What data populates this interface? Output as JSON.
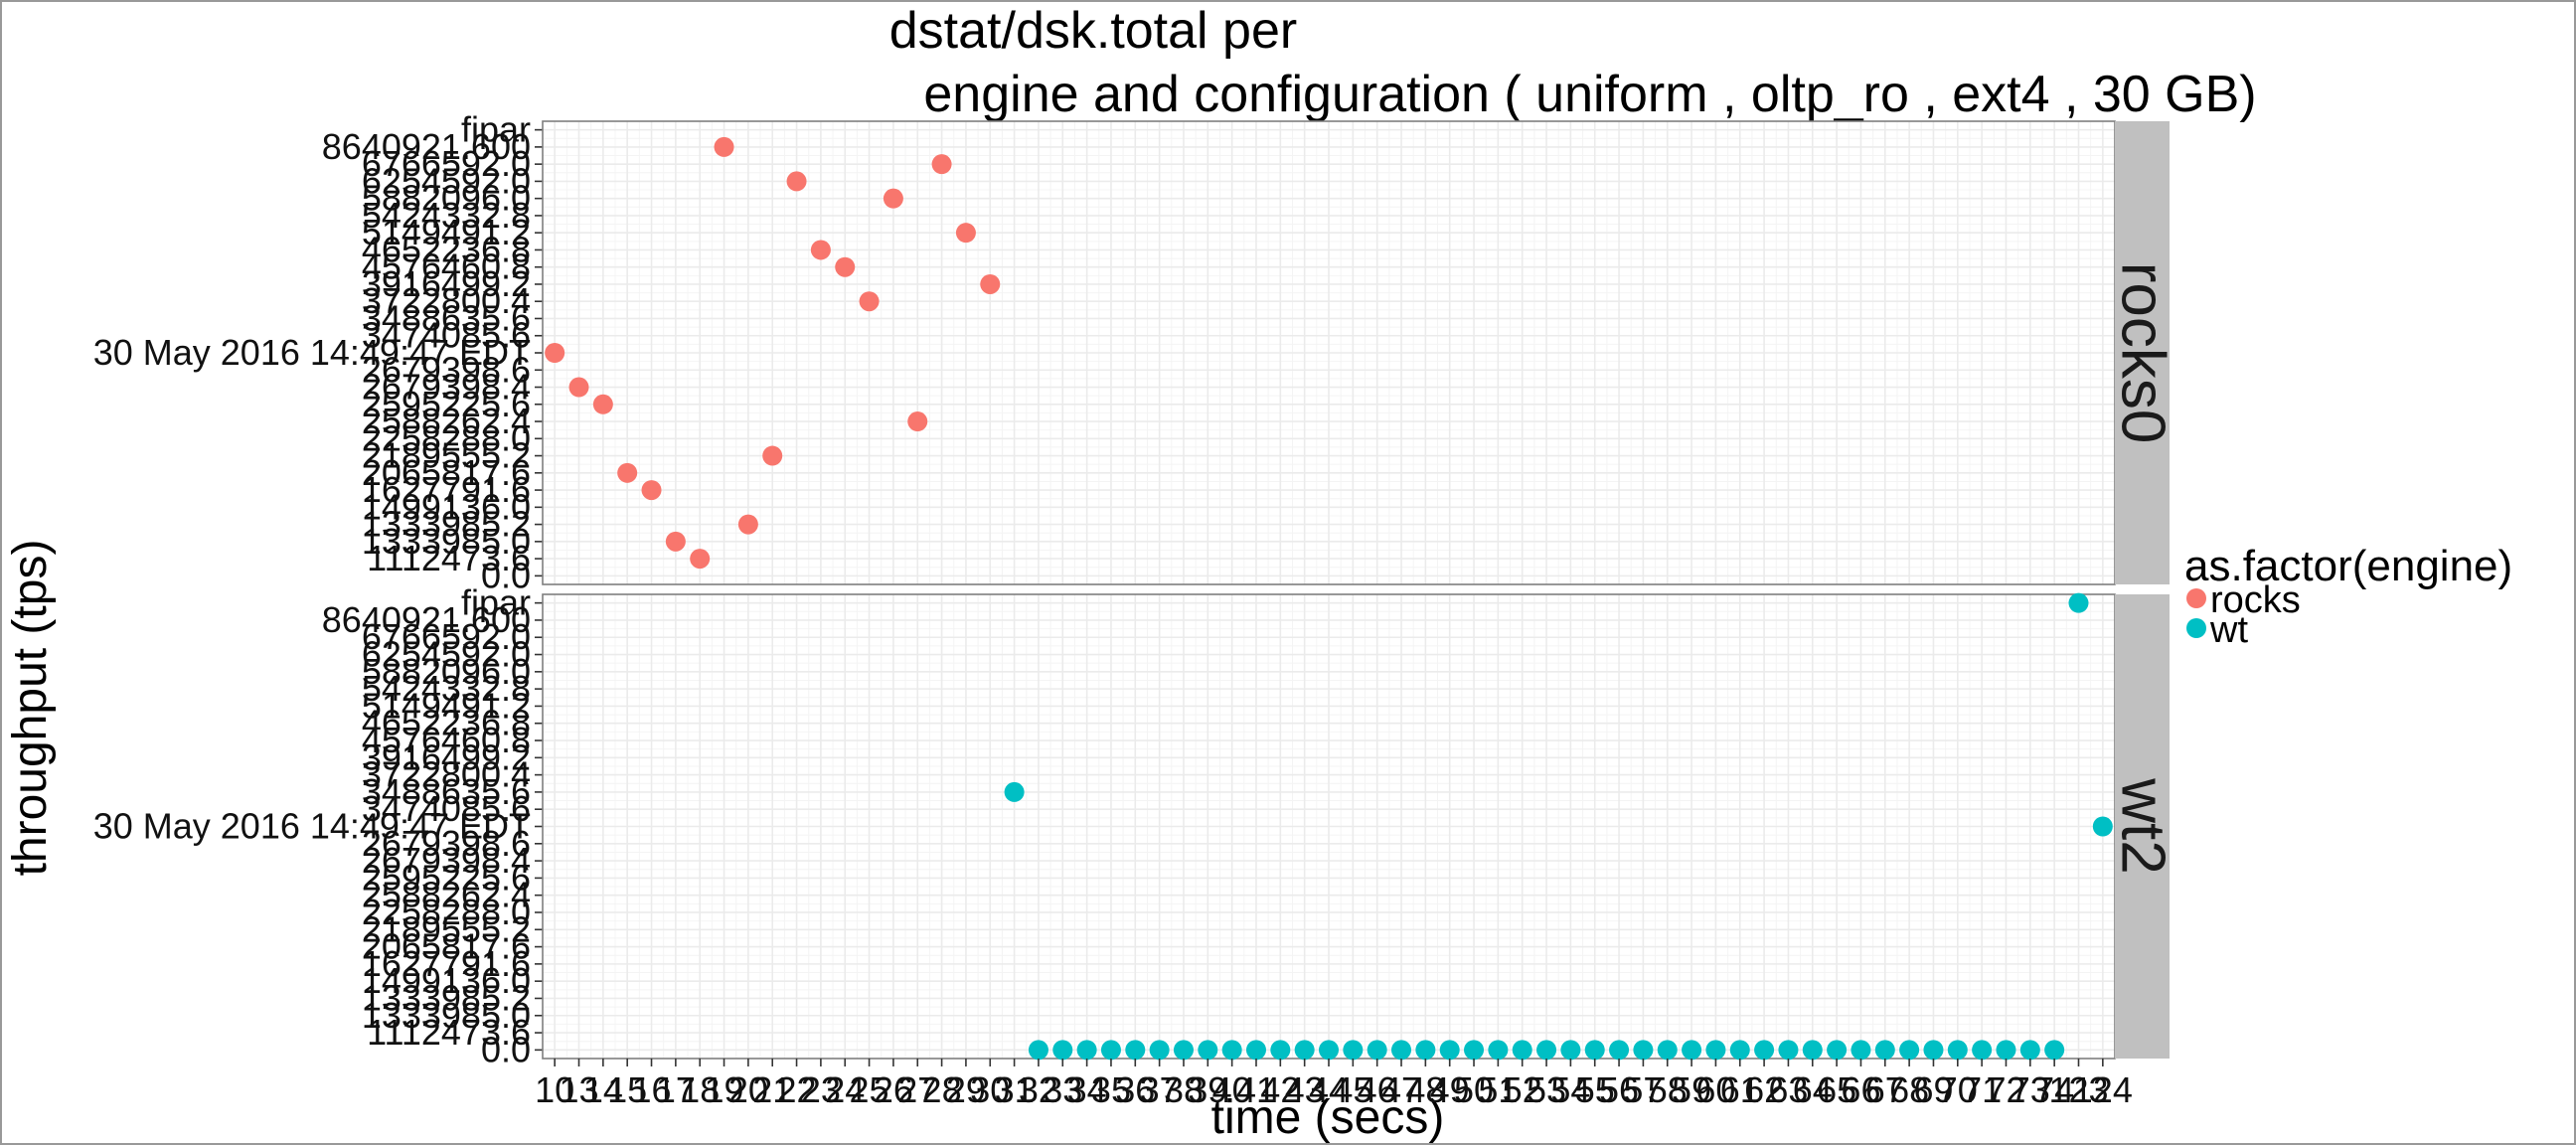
{
  "chart_data": {
    "type": "scatter",
    "title_line1": "dstat/dsk.total per",
    "title_line2": "engine and configuration ( uniform , oltp_ro , ext4 ,  30 GB)",
    "xlabel": "time (secs)",
    "ylabel": "throughput (tps)",
    "legend_title": "as.factor(engine)",
    "legend": [
      {
        "label": "rocks",
        "color": "#F8766D"
      },
      {
        "label": "wt",
        "color": "#00BFC4"
      }
    ],
    "y_categories": [
      "0.0",
      "1112473.6",
      "1333985.0",
      "1333985.2",
      "1499136.0",
      "1627791.6",
      "2065817.6",
      "2189555.2",
      "2258288.0",
      "2588262.4",
      "2595225.6",
      "2679398.4",
      "2679398.6",
      "30 May 2016 14:49:47 EDT",
      "3474085.6",
      "3488635.6",
      "3722800.4",
      "3916499.2",
      "4576460.8",
      "4652236.8",
      "5149491.2",
      "5424332.8",
      "5882096.0",
      "6254592.0",
      "6766592.0",
      "8640921.6",
      "fipar"
    ],
    "y_tick_labels": [
      "0.0",
      "1112473.6",
      "1333985.0",
      "1333985.2",
      "1499136.0",
      "1627791.6",
      "2065817.6",
      "2189555.2",
      "2258288.0",
      "2588262.4",
      "2595225.6",
      "2679398.4",
      "2679398.6",
      "30 May 2016 14:49:47 EDT",
      "3474085.6",
      "3488635.6",
      "3722800.4",
      "3916499.2",
      "4576460.8",
      "4652236.8",
      "5149491.2",
      "5424332.8",
      "5882096.0",
      "6254592.0",
      "6766592.0",
      "8640921.600",
      "fipar"
    ],
    "x_range": [
      0.5,
      65.5
    ],
    "x_tick_labels": [
      "10",
      "13",
      "14",
      "15",
      "16",
      "17",
      "18",
      "19",
      "20",
      "21",
      "22",
      "23",
      "24",
      "25",
      "26",
      "27",
      "28",
      "29",
      "30",
      "31",
      "32",
      "33",
      "34",
      "35",
      "36",
      "37",
      "38",
      "39",
      "40",
      "41",
      "42",
      "43",
      "44",
      "45",
      "46",
      "47",
      "48",
      "49",
      "50",
      "51",
      "52",
      "53",
      "54",
      "55",
      "56",
      "57",
      "58",
      "59",
      "60",
      "61",
      "62",
      "63",
      "64",
      "65",
      "66",
      "67",
      "68",
      "69",
      "70",
      "71",
      "72",
      "73",
      "74",
      "123",
      "124"
    ],
    "panels": [
      {
        "name": "rocks0",
        "series": "rocks",
        "points": [
          [
            1,
            13
          ],
          [
            2,
            11
          ],
          [
            3,
            10
          ],
          [
            4,
            6
          ],
          [
            5,
            5
          ],
          [
            6,
            2
          ],
          [
            7,
            1
          ],
          [
            8,
            25
          ],
          [
            9,
            3
          ],
          [
            10,
            7
          ],
          [
            11,
            23
          ],
          [
            12,
            19
          ],
          [
            13,
            18
          ],
          [
            14,
            16
          ],
          [
            15,
            22
          ],
          [
            16,
            9
          ],
          [
            17,
            24
          ],
          [
            18,
            20
          ],
          [
            19,
            17
          ]
        ]
      },
      {
        "name": "wt2",
        "series": "wt",
        "points": [
          [
            20,
            15
          ],
          [
            21,
            0
          ],
          [
            22,
            0
          ],
          [
            23,
            0
          ],
          [
            24,
            0
          ],
          [
            25,
            0
          ],
          [
            26,
            0
          ],
          [
            27,
            0
          ],
          [
            28,
            0
          ],
          [
            29,
            0
          ],
          [
            30,
            0
          ],
          [
            31,
            0
          ],
          [
            32,
            0
          ],
          [
            33,
            0
          ],
          [
            34,
            0
          ],
          [
            35,
            0
          ],
          [
            36,
            0
          ],
          [
            37,
            0
          ],
          [
            38,
            0
          ],
          [
            39,
            0
          ],
          [
            40,
            0
          ],
          [
            41,
            0
          ],
          [
            42,
            0
          ],
          [
            43,
            0
          ],
          [
            44,
            0
          ],
          [
            45,
            0
          ],
          [
            46,
            0
          ],
          [
            47,
            0
          ],
          [
            48,
            0
          ],
          [
            49,
            0
          ],
          [
            50,
            0
          ],
          [
            51,
            0
          ],
          [
            52,
            0
          ],
          [
            53,
            0
          ],
          [
            54,
            0
          ],
          [
            55,
            0
          ],
          [
            56,
            0
          ],
          [
            57,
            0
          ],
          [
            58,
            0
          ],
          [
            59,
            0
          ],
          [
            60,
            0
          ],
          [
            61,
            0
          ],
          [
            62,
            0
          ],
          [
            63,
            0
          ],
          [
            64,
            26
          ],
          [
            65,
            13
          ]
        ]
      }
    ]
  }
}
